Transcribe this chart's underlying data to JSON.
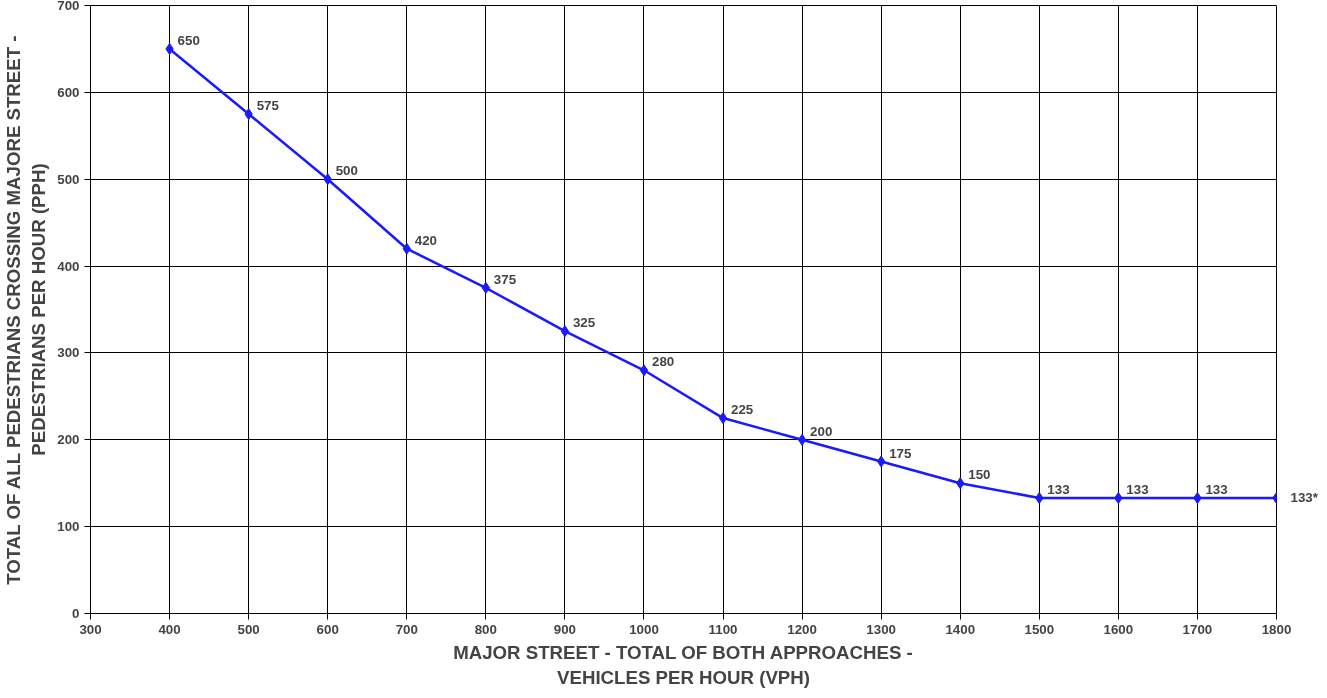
{
  "chart_data": {
    "type": "line",
    "xlabel": "MAJOR STREET - TOTAL OF BOTH APPROACHES -\nVEHICLES PER HOUR (VPH)",
    "ylabel": "TOTAL OF ALL PEDESTRIANS CROSSING MAJORE STREET -\nPEDESTRIANS PER HOUR (PPH)",
    "x": [
      400,
      500,
      600,
      700,
      800,
      900,
      1000,
      1100,
      1200,
      1300,
      1400,
      1500,
      1600,
      1700,
      1800
    ],
    "series": [
      {
        "color": "#1a1aff",
        "values": [
          650,
          575,
          500,
          420,
          375,
          325,
          280,
          225,
          200,
          175,
          150,
          133,
          133,
          133,
          133
        ],
        "value_labels": [
          "650",
          "575",
          "500",
          "420",
          "375",
          "325",
          "280",
          "225",
          "200",
          "175",
          "150",
          "133",
          "133",
          "133",
          "133*"
        ]
      }
    ],
    "xlim": [
      300,
      1800
    ],
    "xticks": [
      300,
      400,
      500,
      600,
      700,
      800,
      900,
      1000,
      1100,
      1200,
      1300,
      1400,
      1500,
      1600,
      1700,
      1800
    ],
    "ylim": [
      0,
      700
    ],
    "yticks": [
      0,
      100,
      200,
      300,
      400,
      500,
      600,
      700
    ],
    "grid": true,
    "marker": "diamond",
    "line_style": "solid"
  }
}
